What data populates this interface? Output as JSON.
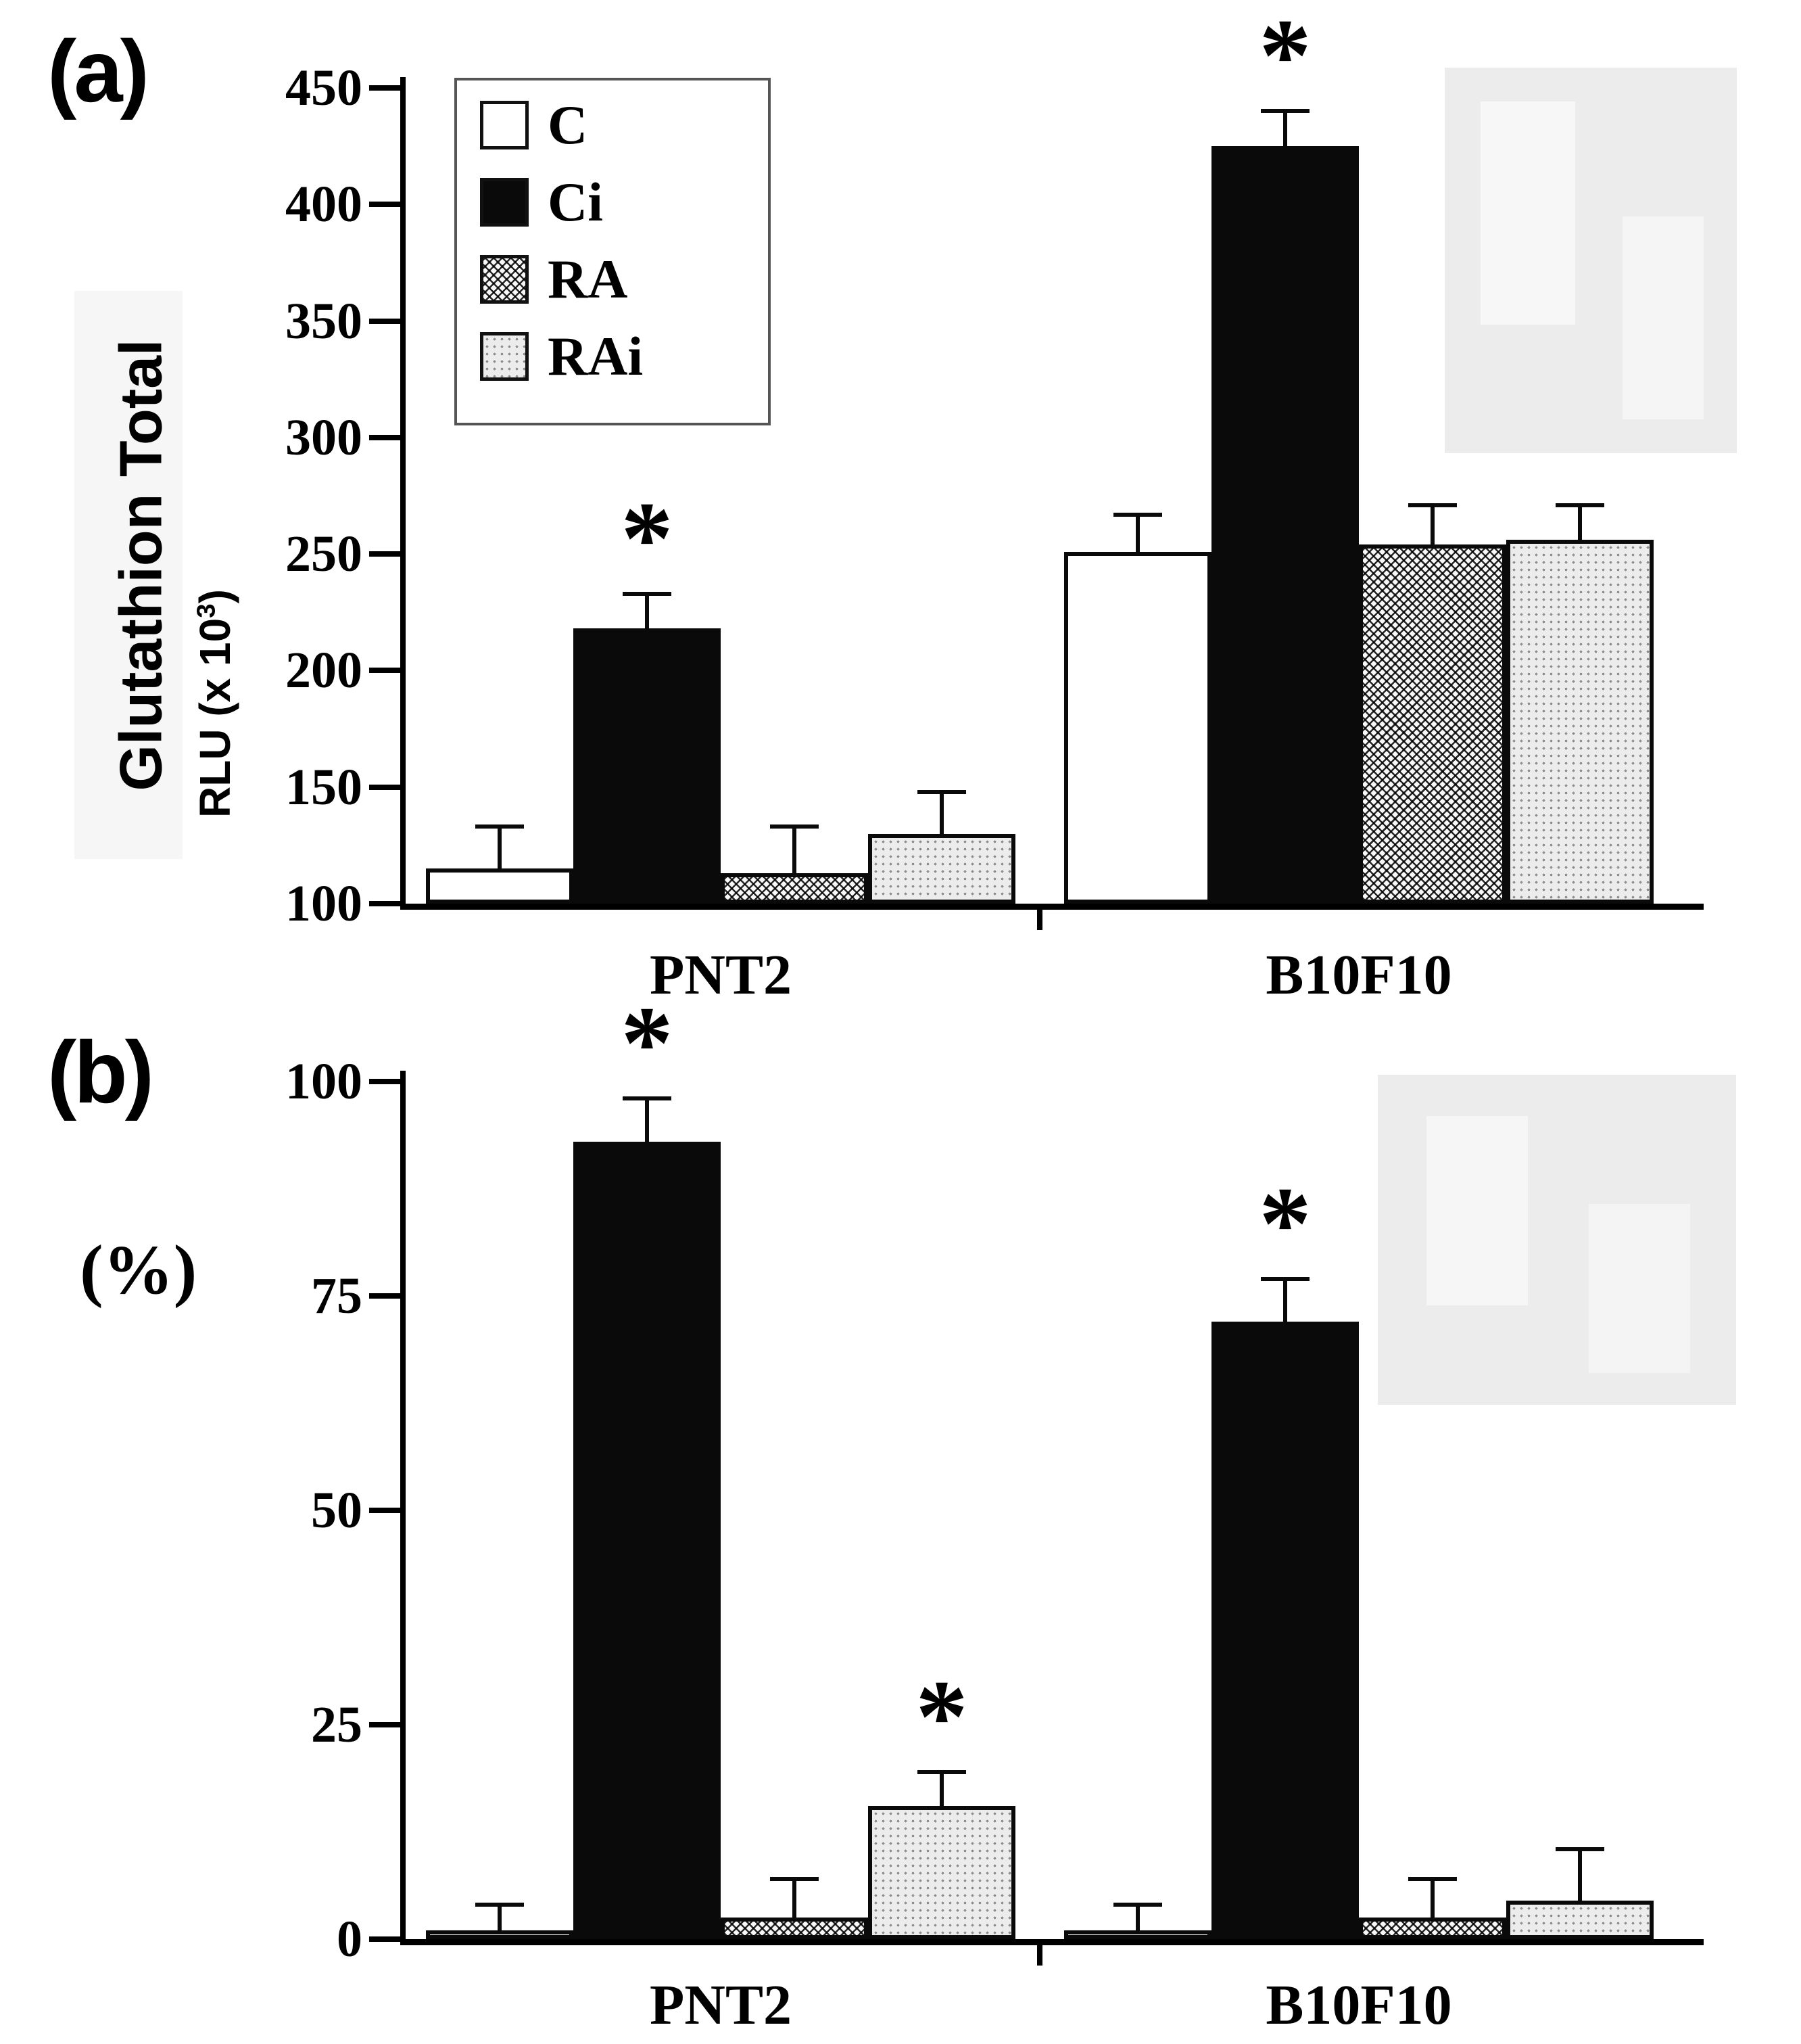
{
  "figure": {
    "panel_a_label": "(a)",
    "panel_b_label": "(b)",
    "y_axis_title_a": "Glutathion Total",
    "rlu_prefix": "RLU (x 10",
    "rlu_sup": "3",
    "rlu_suffix": ")",
    "y_axis_title_b": "(%)",
    "significance_marker": "*"
  },
  "legend": {
    "items": [
      {
        "label": "C",
        "pattern": "white",
        "swatch_class": "swatch pat-white"
      },
      {
        "label": "Ci",
        "pattern": "black",
        "swatch_class": "swatch pat-black"
      },
      {
        "label": "RA",
        "pattern": "crosshatch",
        "swatch_class": "swatch pat-crosshatch"
      },
      {
        "label": "RAi",
        "pattern": "dots",
        "swatch_class": "swatch pat-dots"
      }
    ]
  },
  "colors": {
    "bar_black": "#0a0a0a",
    "axis": "#000000",
    "artifact_gray": "#ececec"
  },
  "chart_data": [
    {
      "type": "bar",
      "panel": "a",
      "title": "Glutathion Total",
      "ylabel": "RLU (x 10^3)",
      "ylim": [
        100,
        450
      ],
      "yticks": [
        100,
        150,
        200,
        250,
        300,
        350,
        400,
        450
      ],
      "grid": false,
      "legend_position": "upper-left",
      "categories": [
        "PNT2",
        "B10F10"
      ],
      "series": [
        {
          "name": "C",
          "pattern": "white",
          "values": [
            115,
            251
          ],
          "errors": [
            18,
            16
          ],
          "significant": [
            false,
            false
          ]
        },
        {
          "name": "Ci",
          "pattern": "black",
          "values": [
            218,
            425
          ],
          "errors": [
            15,
            15
          ],
          "significant": [
            true,
            true
          ]
        },
        {
          "name": "RA",
          "pattern": "crosshatch",
          "values": [
            113,
            254
          ],
          "errors": [
            20,
            17
          ],
          "significant": [
            false,
            false
          ]
        },
        {
          "name": "RAi",
          "pattern": "dots",
          "values": [
            130,
            256
          ],
          "errors": [
            18,
            15
          ],
          "significant": [
            false,
            false
          ]
        }
      ]
    },
    {
      "type": "bar",
      "panel": "b",
      "title": "",
      "ylabel": "(%)",
      "ylim": [
        0,
        100
      ],
      "yticks": [
        0,
        25,
        50,
        75,
        100
      ],
      "grid": false,
      "legend_position": "none",
      "categories": [
        "PNT2",
        "B10F10"
      ],
      "series": [
        {
          "name": "C",
          "pattern": "white",
          "values": [
            1,
            1
          ],
          "errors": [
            3,
            3
          ],
          "significant": [
            false,
            false
          ]
        },
        {
          "name": "Ci",
          "pattern": "black",
          "values": [
            93,
            72
          ],
          "errors": [
            5,
            5
          ],
          "significant": [
            true,
            true
          ]
        },
        {
          "name": "RA",
          "pattern": "crosshatch",
          "values": [
            2.5,
            2.5
          ],
          "errors": [
            4.5,
            4.5
          ],
          "significant": [
            false,
            false
          ]
        },
        {
          "name": "RAi",
          "pattern": "dots",
          "values": [
            15.5,
            4.5
          ],
          "errors": [
            4,
            6
          ],
          "significant": [
            true,
            false
          ]
        }
      ]
    }
  ]
}
